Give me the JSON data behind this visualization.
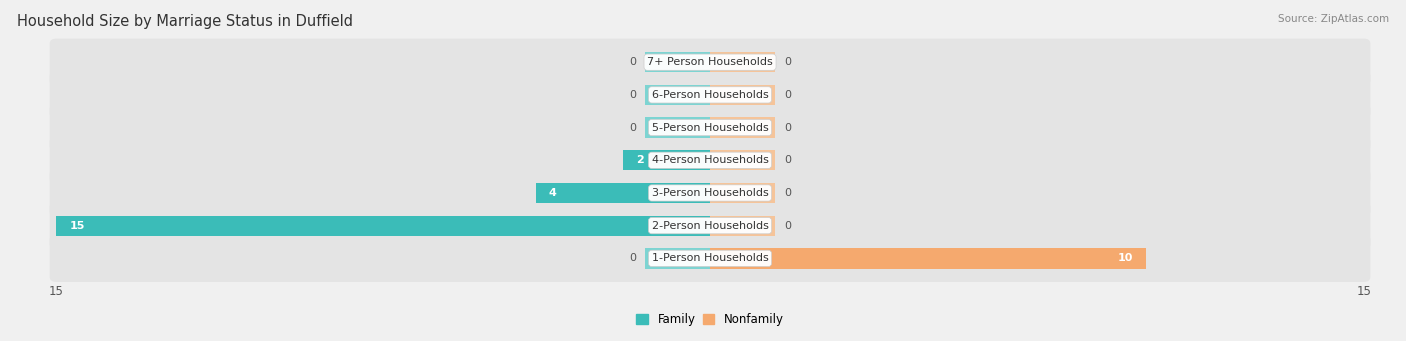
{
  "title": "Household Size by Marriage Status in Duffield",
  "source": "Source: ZipAtlas.com",
  "categories": [
    "7+ Person Households",
    "6-Person Households",
    "5-Person Households",
    "4-Person Households",
    "3-Person Households",
    "2-Person Households",
    "1-Person Households"
  ],
  "family": [
    0,
    0,
    0,
    2,
    4,
    15,
    0
  ],
  "nonfamily": [
    0,
    0,
    0,
    0,
    0,
    0,
    10
  ],
  "family_color": "#3BBCB8",
  "nonfamily_color": "#F5A96E",
  "family_color_dark": "#2AA8A4",
  "placeholder_fam_color": "#7DD4D2",
  "placeholder_nonfam_color": "#F5C49A",
  "xlim": [
    -15,
    15
  ],
  "background_color": "#f0f0f0",
  "row_bg_color": "#e4e4e4",
  "row_bg_color_alt": "#e4e4e4",
  "label_bg_color": "#ffffff",
  "title_fontsize": 10.5,
  "source_fontsize": 7.5,
  "tick_fontsize": 8.5,
  "legend_fontsize": 8.5,
  "bar_value_fontsize": 8,
  "placeholder_size": 1.5
}
